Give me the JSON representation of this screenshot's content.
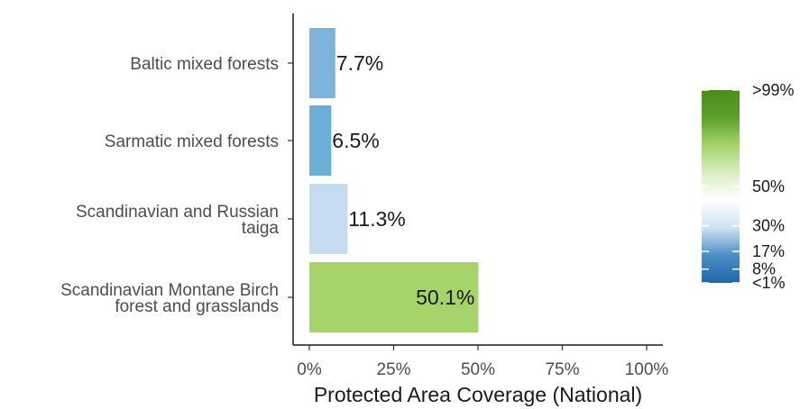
{
  "chart_data": {
    "type": "bar",
    "orientation": "horizontal",
    "categories": [
      "Baltic mixed forests",
      "Sarmatic mixed forests",
      "Scandinavian and Russian taiga",
      "Scandinavian Montane Birch forest and grasslands"
    ],
    "category_lines": [
      [
        "Baltic mixed forests"
      ],
      [
        "Sarmatic mixed forests"
      ],
      [
        "Scandinavian and Russian",
        "taiga"
      ],
      [
        "Scandinavian Montane Birch",
        "forest and grasslands"
      ]
    ],
    "values": [
      7.7,
      6.5,
      11.3,
      50.1
    ],
    "value_labels": [
      "7.7%",
      "6.5%",
      "11.3%",
      "50.1%"
    ],
    "bar_colors": [
      "#7fb4da",
      "#6baed6",
      "#c6dbef",
      "#a6d46a"
    ],
    "xlabel": "Protected Area Coverage (National)",
    "xlim": [
      0,
      100
    ],
    "xticks": [
      0,
      25,
      50,
      75,
      100
    ],
    "xtick_labels": [
      "0%",
      "25%",
      "50%",
      "75%",
      "100%"
    ],
    "grid": false,
    "legend": {
      "type": "colorbar",
      "placement": "right",
      "labels": [
        ">99%",
        "50%",
        "30%",
        "17%",
        "8%",
        "<1%"
      ],
      "label_values": [
        99,
        50,
        30,
        17,
        8,
        1
      ],
      "gradient": [
        "#2166ac",
        "#4a90c4",
        "#cfe2f3",
        "#ffffff",
        "#d9efc4",
        "#a6d46a",
        "#5aa02c",
        "#4a8c1c"
      ]
    }
  }
}
